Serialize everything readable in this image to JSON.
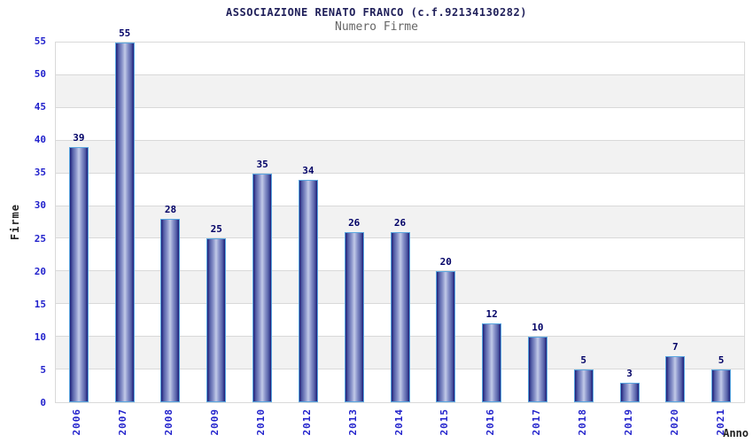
{
  "header": {
    "title": "ASSOCIAZIONE RENATO FRANCO (c.f.92134130282)",
    "subtitle": "Numero Firme"
  },
  "chart_data": {
    "type": "bar",
    "title": "ASSOCIAZIONE RENATO FRANCO (c.f.92134130282)",
    "subtitle": "Numero Firme",
    "categories": [
      "2006",
      "2007",
      "2008",
      "2009",
      "2010",
      "2012",
      "2013",
      "2014",
      "2015",
      "2016",
      "2017",
      "2018",
      "2019",
      "2020",
      "2021"
    ],
    "values": [
      39,
      55,
      28,
      25,
      35,
      34,
      26,
      26,
      20,
      12,
      10,
      5,
      3,
      7,
      5
    ],
    "xlabel": "Anno",
    "ylabel": "Firme",
    "ylim": [
      0,
      55
    ],
    "ytick_step": 5,
    "yticks": [
      0,
      5,
      10,
      15,
      20,
      25,
      30,
      35,
      40,
      45,
      50,
      55
    ],
    "grid": "horizontal",
    "background_bands": "alternating white/gray every 5 units",
    "legend": null,
    "note": "year 2011 has no bar (absent from categories)"
  },
  "colors": {
    "title": "#20205a",
    "subtitle": "#666666",
    "tick_label": "#2222cc",
    "value_label": "#000066",
    "axis_title": "#222222",
    "bar_edge": "#1e1e78",
    "bar_center": "#c2cae8",
    "bar_border": "#5aa7e0",
    "band_gray": "#f2f2f2",
    "gridline": "#d9d9d9",
    "background": "#ffffff"
  }
}
